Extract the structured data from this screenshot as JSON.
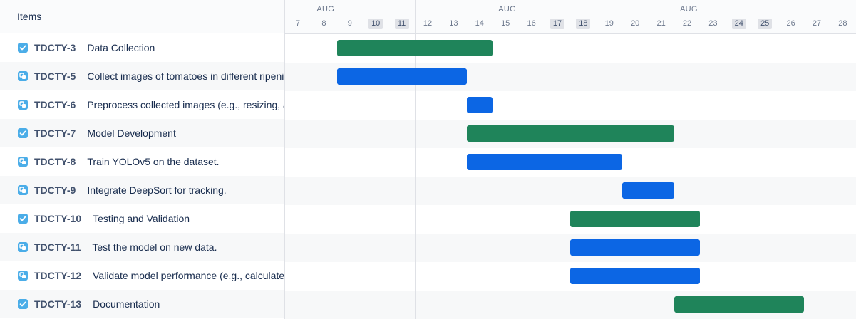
{
  "header": {
    "items_label": "Items"
  },
  "timeline": {
    "months": [
      {
        "label": "AUG",
        "col": 1
      },
      {
        "label": "AUG",
        "col": 8
      },
      {
        "label": "AUG",
        "col": 15
      }
    ],
    "days": [
      "7",
      "8",
      "9",
      "10",
      "11",
      "12",
      "13",
      "14",
      "15",
      "16",
      "17",
      "18",
      "19",
      "20",
      "21",
      "22",
      "23",
      "24",
      "25",
      "26",
      "27",
      "28"
    ],
    "weekends": [
      "10",
      "11",
      "17",
      "18",
      "24",
      "25"
    ],
    "week_separators_after_day": [
      "11",
      "18",
      "25"
    ]
  },
  "colors": {
    "epic": "#1f845a",
    "child": "#0c66e4"
  },
  "rows": [
    {
      "key": "TDCTY-3",
      "summary": "Data Collection",
      "type": "task",
      "icon": "checkbox-icon",
      "start": 9,
      "end": 14
    },
    {
      "key": "TDCTY-5",
      "summary": "Collect images of tomatoes in different ripening stages.",
      "type": "subtask",
      "icon": "subtask-icon",
      "start": 9,
      "end": 13
    },
    {
      "key": "TDCTY-6",
      "summary": "Preprocess collected images (e.g., resizing, augmentation).",
      "type": "subtask",
      "icon": "subtask-icon",
      "start": 14,
      "end": 14
    },
    {
      "key": "TDCTY-7",
      "summary": "Model Development",
      "type": "task",
      "icon": "checkbox-icon",
      "start": 14,
      "end": 21
    },
    {
      "key": "TDCTY-8",
      "summary": "Train YOLOv5 on the dataset.",
      "type": "subtask",
      "icon": "subtask-icon",
      "start": 14,
      "end": 19
    },
    {
      "key": "TDCTY-9",
      "summary": "Integrate DeepSort for tracking.",
      "type": "subtask",
      "icon": "subtask-icon",
      "start": 20,
      "end": 21
    },
    {
      "key": "TDCTY-10",
      "summary": "Testing and Validation",
      "type": "task",
      "icon": "checkbox-icon",
      "start": 18,
      "end": 22
    },
    {
      "key": "TDCTY-11",
      "summary": "Test the model on new data.",
      "type": "subtask",
      "icon": "subtask-icon",
      "start": 18,
      "end": 22
    },
    {
      "key": "TDCTY-12",
      "summary": "Validate model performance (e.g., calculate accuracy).",
      "type": "subtask",
      "icon": "subtask-icon",
      "start": 18,
      "end": 22
    },
    {
      "key": "TDCTY-13",
      "summary": "Documentation",
      "type": "task",
      "icon": "checkbox-icon",
      "start": 22,
      "end": 26
    }
  ]
}
